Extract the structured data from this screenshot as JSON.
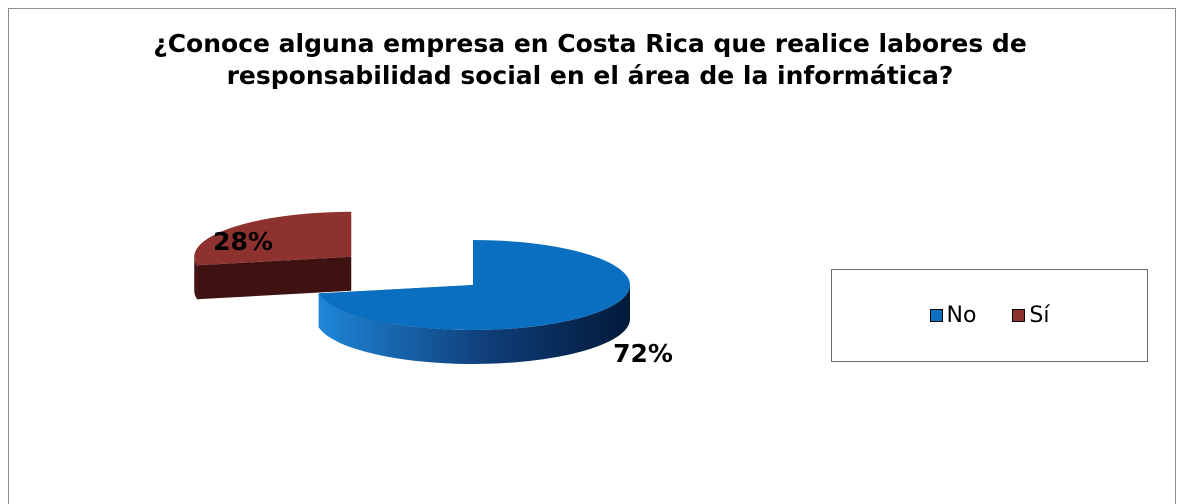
{
  "chart_data": {
    "type": "pie",
    "title": "¿Conoce alguna empresa en Costa Rica que realice labores de\nresponsabilidad social en el área de la informática?",
    "categories": [
      "No",
      "Sí"
    ],
    "values": [
      72,
      28
    ],
    "data_labels": [
      "72%",
      "28%"
    ],
    "colors": [
      "#0a6fc0",
      "#8e3230"
    ],
    "style": "3d-exploded",
    "legend_position": "right"
  }
}
